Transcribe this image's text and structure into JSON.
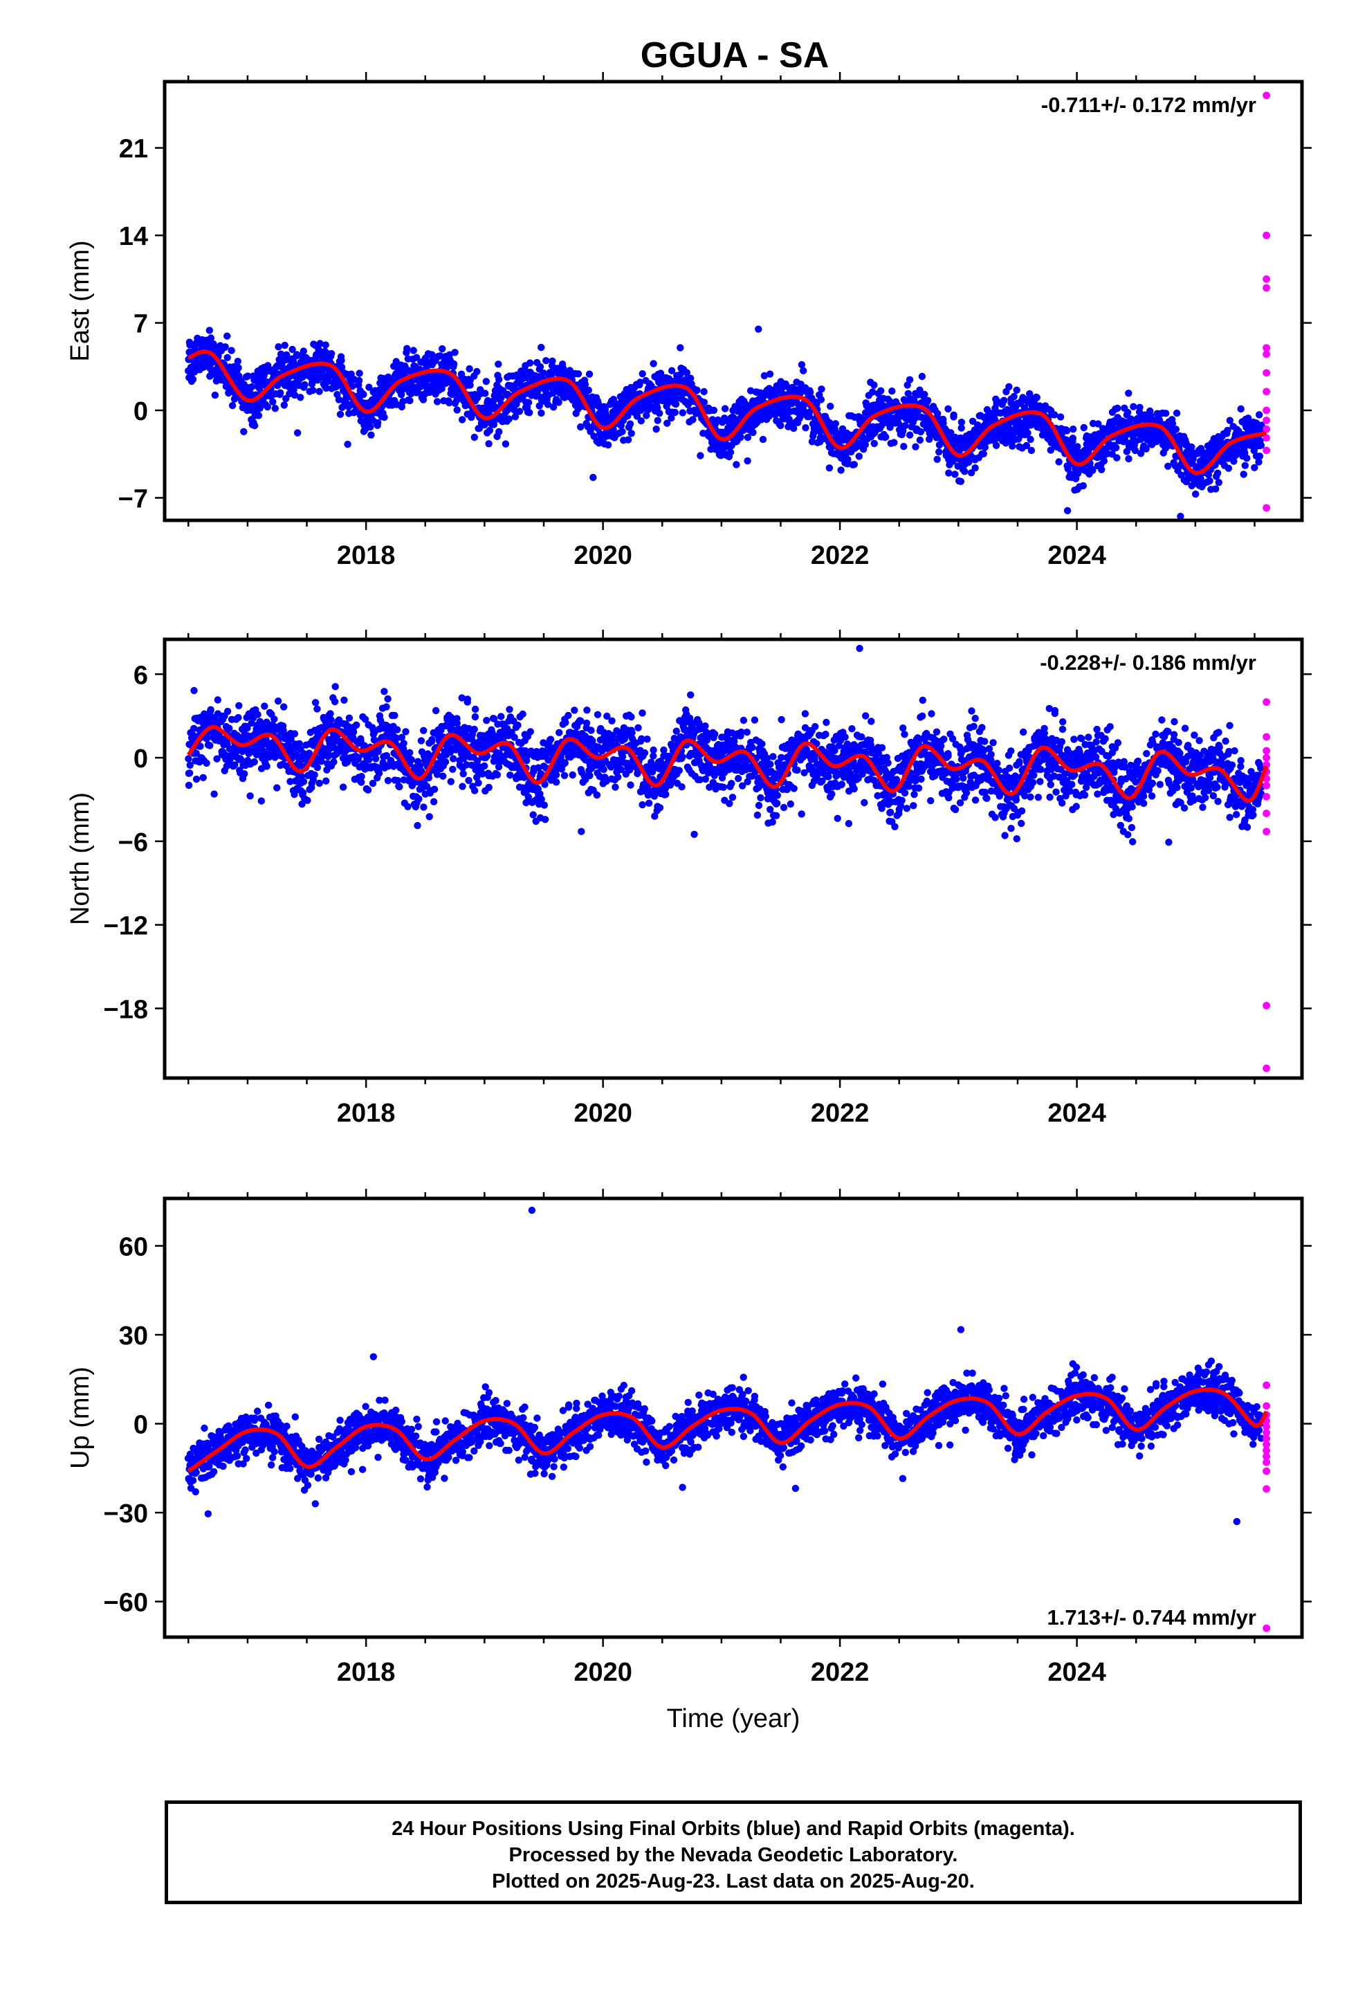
{
  "title": "GGUA - SA",
  "caption": {
    "line1": "24 Hour Positions Using Final Orbits (blue) and Rapid Orbits (magenta).",
    "line2": "Processed by the Nevada Geodetic Laboratory.",
    "line3": "Plotted on 2025-Aug-23. Last data on 2025-Aug-20."
  },
  "colors": {
    "final_orbits": "#0000ff",
    "rapid_orbits": "#ff00ff",
    "model_fit": "#ff0000",
    "frame": "#000000"
  },
  "chart_data": [
    {
      "type": "scatter",
      "panel": "east",
      "title": "GGUA - SA",
      "ylabel": "East (mm)",
      "xlabel": "",
      "xlim": [
        2016.3,
        2025.9
      ],
      "ylim": [
        -8.8,
        26.3
      ],
      "yticks": [
        -7,
        0,
        7,
        14,
        21
      ],
      "xticks": [
        2018,
        2020,
        2022,
        2024
      ],
      "rate_label": "-0.711+/- 0.172 mm/yr",
      "rate_position": "top-right",
      "series": [
        {
          "role": "final_orbits",
          "x_start": 2016.5,
          "x_end": 2025.56,
          "trend": -0.711,
          "offset": 4.6,
          "annual_amp": 1.9,
          "noise_sd": 1.0
        },
        {
          "role": "model_fit",
          "x": [
            2016.5,
            2016.7,
            2017.0,
            2017.3,
            2017.7,
            2018.0,
            2018.3,
            2018.7,
            2019.0,
            2019.3,
            2019.7,
            2020.0,
            2020.3,
            2020.7,
            2021.0,
            2021.3,
            2021.7,
            2022.0,
            2022.3,
            2022.7,
            2023.0,
            2023.3,
            2023.7,
            2024.0,
            2024.3,
            2024.7,
            2025.0,
            2025.3,
            2025.6
          ],
          "y": [
            4.2,
            4.5,
            0.8,
            2.8,
            3.6,
            -0.1,
            2.4,
            3.0,
            -0.6,
            1.5,
            2.4,
            -1.4,
            1.0,
            1.8,
            -2.3,
            0.2,
            0.9,
            -3.0,
            -0.4,
            0.2,
            -3.6,
            -1.2,
            -0.3,
            -4.3,
            -2.0,
            -1.3,
            -5.0,
            -2.6,
            -1.8
          ]
        },
        {
          "role": "rapid_orbits",
          "x": [
            2025.6,
            2025.6,
            2025.6,
            2025.6,
            2025.6,
            2025.6,
            2025.6,
            2025.6,
            2025.6,
            2025.6,
            2025.6,
            2025.6,
            2025.6,
            2025.6
          ],
          "y": [
            25.2,
            14.0,
            10.5,
            9.8,
            5.0,
            4.5,
            3.0,
            1.5,
            0.0,
            -0.8,
            -1.5,
            -2.2,
            -3.2,
            -7.8
          ]
        }
      ]
    },
    {
      "type": "scatter",
      "panel": "north",
      "ylabel": "North (mm)",
      "xlabel": "",
      "xlim": [
        2016.3,
        2025.9
      ],
      "ylim": [
        -23,
        8.5
      ],
      "yticks": [
        -18,
        -12,
        -6,
        0,
        6
      ],
      "xticks": [
        2018,
        2020,
        2022,
        2024
      ],
      "rate_label": "-0.228+/- 0.186 mm/yr",
      "rate_position": "top-right",
      "series": [
        {
          "role": "final_orbits",
          "x_start": 2016.5,
          "x_end": 2025.56,
          "trend": -0.228,
          "offset": 0.9,
          "semiannual_amp": 1.4,
          "noise_sd": 1.25
        },
        {
          "role": "model_fit",
          "x": [
            2016.5,
            2016.7,
            2016.95,
            2017.2,
            2017.45,
            2017.7,
            2017.95,
            2018.2,
            2018.45,
            2018.7,
            2018.95,
            2019.2,
            2019.45,
            2019.7,
            2019.95,
            2020.2,
            2020.45,
            2020.7,
            2020.95,
            2021.2,
            2021.45,
            2021.7,
            2021.95,
            2022.2,
            2022.45,
            2022.7,
            2022.95,
            2023.2,
            2023.45,
            2023.7,
            2023.95,
            2024.2,
            2024.45,
            2024.7,
            2024.95,
            2025.2,
            2025.45,
            2025.6
          ],
          "y": [
            0.2,
            2.2,
            0.9,
            1.6,
            -1.0,
            2.0,
            0.5,
            1.1,
            -1.5,
            1.6,
            0.3,
            1.0,
            -1.8,
            1.3,
            0.0,
            0.7,
            -2.0,
            1.2,
            -0.3,
            0.4,
            -2.1,
            1.0,
            -0.6,
            0.1,
            -2.4,
            0.8,
            -0.8,
            -0.2,
            -2.6,
            0.7,
            -0.9,
            -0.5,
            -2.9,
            0.4,
            -1.2,
            -0.8,
            -3.1,
            -0.6
          ]
        },
        {
          "role": "rapid_orbits",
          "x": [
            2025.6,
            2025.6,
            2025.6,
            2025.6,
            2025.6,
            2025.6,
            2025.6,
            2025.6,
            2025.6,
            2025.6,
            2025.6,
            2025.6,
            2025.6
          ],
          "y": [
            4.0,
            1.5,
            0.5,
            0.0,
            -0.5,
            -1.0,
            -1.5,
            -2.0,
            -2.8,
            -4.0,
            -5.3,
            -17.8,
            -22.3
          ]
        }
      ]
    },
    {
      "type": "scatter",
      "panel": "up",
      "ylabel": "Up (mm)",
      "xlabel": "Time (year)",
      "xlim": [
        2016.3,
        2025.9
      ],
      "ylim": [
        -72,
        76
      ],
      "yticks": [
        -60,
        -30,
        0,
        30,
        60
      ],
      "xticks": [
        2018,
        2020,
        2022,
        2024
      ],
      "rate_label": "1.713+/- 0.744 mm/yr",
      "rate_position": "bottom-right",
      "series": [
        {
          "role": "final_orbits",
          "x_start": 2016.5,
          "x_end": 2025.56,
          "trend": 1.713,
          "offset": -6.5,
          "annual_amp": 7.0,
          "noise_sd": 3.8
        },
        {
          "role": "model_fit",
          "x": [
            2016.5,
            2016.75,
            2017.0,
            2017.25,
            2017.5,
            2017.75,
            2018.0,
            2018.25,
            2018.5,
            2018.75,
            2019.0,
            2019.25,
            2019.5,
            2019.75,
            2020.0,
            2020.25,
            2020.5,
            2020.75,
            2021.0,
            2021.25,
            2021.5,
            2021.75,
            2022.0,
            2022.25,
            2022.5,
            2022.75,
            2023.0,
            2023.25,
            2023.5,
            2023.75,
            2024.0,
            2024.25,
            2024.5,
            2024.75,
            2025.0,
            2025.25,
            2025.5,
            2025.6
          ],
          "y": [
            -16.0,
            -9.0,
            -2.5,
            -3.5,
            -14.5,
            -8.0,
            -1.0,
            -2.0,
            -12.0,
            -5.5,
            1.0,
            0.0,
            -10.0,
            -3.0,
            3.0,
            2.0,
            -8.0,
            -1.0,
            4.5,
            3.5,
            -6.5,
            1.0,
            6.5,
            5.5,
            -5.0,
            2.5,
            8.0,
            7.0,
            -3.5,
            4.0,
            9.5,
            8.5,
            -2.0,
            5.5,
            11.0,
            10.0,
            -0.5,
            4.0
          ]
        },
        {
          "role": "rapid_orbits",
          "x": [
            2025.6,
            2025.6,
            2025.6,
            2025.6,
            2025.6,
            2025.6,
            2025.6,
            2025.6,
            2025.6,
            2025.6,
            2025.6,
            2025.6,
            2025.6,
            2025.6
          ],
          "y": [
            13.0,
            6.0,
            3.0,
            1.0,
            -1.0,
            -3.0,
            -5.0,
            -7.0,
            -9.0,
            -11.0,
            -13.0,
            -16.0,
            -22.0,
            -69.0
          ]
        },
        {
          "role": "outliers",
          "x": [
            2019.4,
            2025.35
          ],
          "y": [
            72.0,
            -33.0
          ]
        }
      ]
    }
  ]
}
